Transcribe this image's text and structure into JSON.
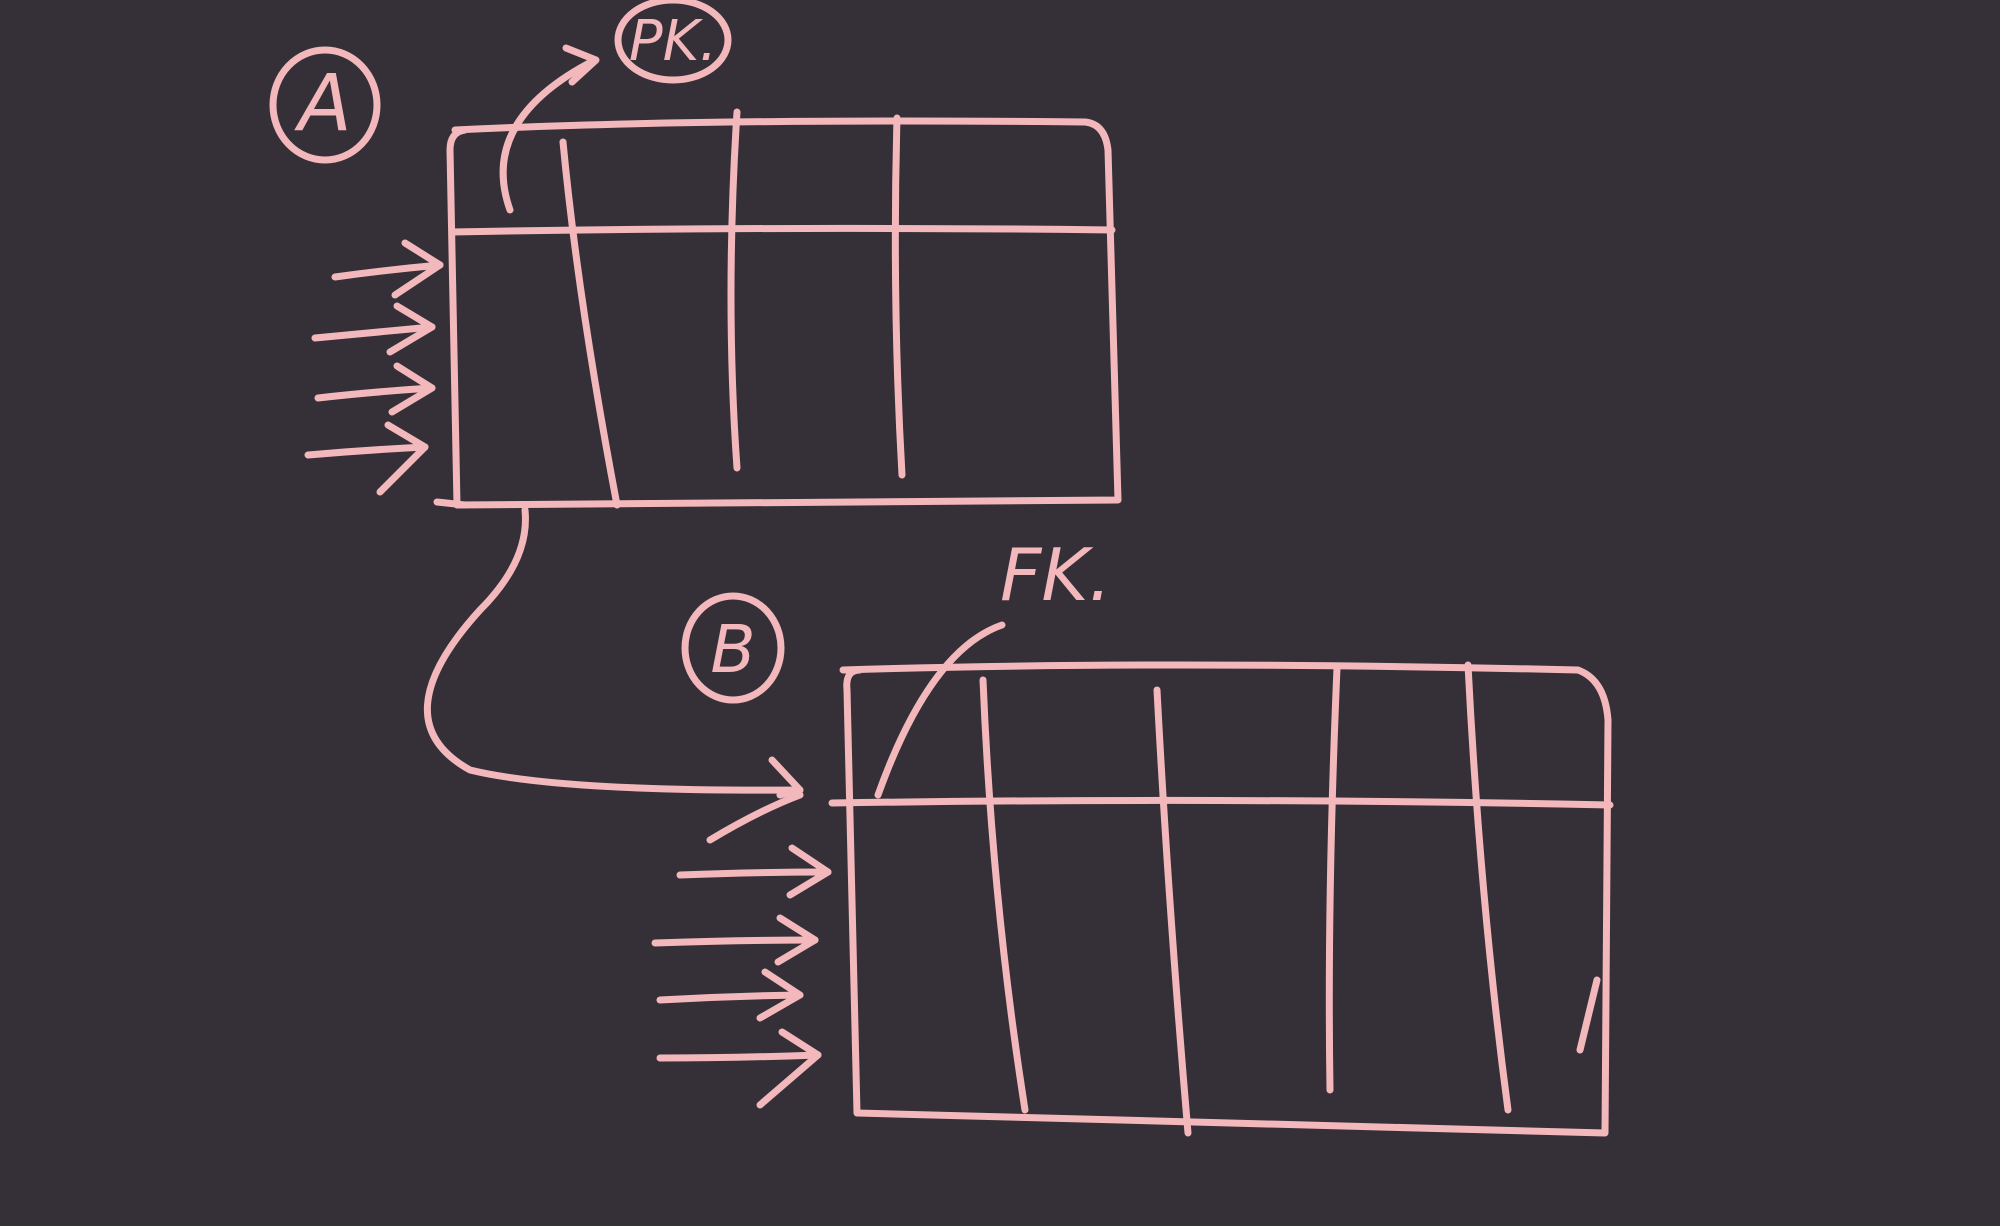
{
  "colors": {
    "background": "#352f37",
    "ink": "#f2b8bb"
  },
  "diagram": {
    "table_a": {
      "label": "A",
      "key_label": "PK."
    },
    "table_b": {
      "label": "B",
      "key_label": "FK."
    }
  }
}
